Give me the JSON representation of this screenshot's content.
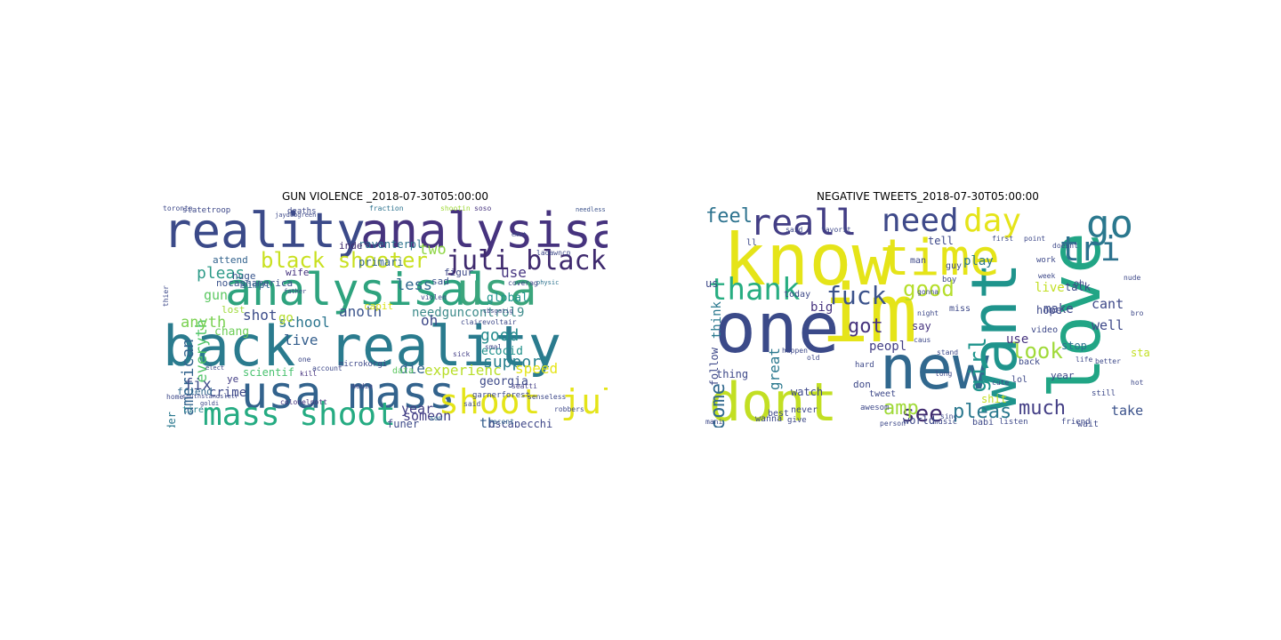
{
  "panels": [
    {
      "title": "GUN VIOLENCE _2018-07-30T05:00:00",
      "words": [
        {
          "t": "reality",
          "c": "#3b4a89"
        },
        {
          "t": "analysisal",
          "c": "#46337e"
        },
        {
          "t": "analysisal",
          "c": "#2ea37e"
        },
        {
          "t": "usa",
          "c": "#3ba57c"
        },
        {
          "t": "back reality",
          "c": "#2a7b8e"
        },
        {
          "t": "usa mass",
          "c": "#33638d"
        },
        {
          "t": "mass shoot",
          "c": "#25ab82"
        },
        {
          "t": "shoot juli",
          "c": "#e4e419"
        },
        {
          "t": "black shooter",
          "c": "#c9e020"
        },
        {
          "t": "juli black",
          "c": "#3f2a6e"
        },
        {
          "t": "pleas",
          "c": "#2f9b89"
        },
        {
          "t": "american",
          "c": "#32648e"
        },
        {
          "t": "everyth",
          "c": "#52c569"
        },
        {
          "t": "anyth",
          "c": "#7ad151"
        },
        {
          "t": "shot",
          "c": "#3d4d8a"
        },
        {
          "t": "school",
          "c": "#2b758e"
        },
        {
          "t": "anoth",
          "c": "#3a538b"
        },
        {
          "t": "needguncontrol9",
          "c": "#3f8c8c"
        },
        {
          "t": "good",
          "c": "#238a8d"
        },
        {
          "t": "support",
          "c": "#27808e"
        },
        {
          "t": "use",
          "c": "#463480"
        },
        {
          "t": "less",
          "c": "#31688e"
        },
        {
          "t": "oh",
          "c": "#3e4989"
        },
        {
          "t": "two",
          "c": "#8ed645"
        },
        {
          "t": "gun",
          "c": "#5dc863"
        },
        {
          "t": "live",
          "c": "#355f8d"
        },
        {
          "t": "go",
          "c": "#b5de2b"
        },
        {
          "t": "chang",
          "c": "#6ece58"
        },
        {
          "t": "fix",
          "c": "#3d4d8a"
        },
        {
          "t": "crime",
          "c": "#3e4989"
        },
        {
          "t": "die",
          "c": "#33638d"
        },
        {
          "t": "experienc",
          "c": "#b8de29"
        },
        {
          "t": "year",
          "c": "#423f85"
        },
        {
          "t": "someon",
          "c": "#433e85"
        },
        {
          "t": "th",
          "c": "#355f8d"
        },
        {
          "t": "ecocid",
          "c": "#21918c"
        },
        {
          "t": "georgia",
          "c": "#3e4a89"
        },
        {
          "t": "speed",
          "c": "#e5e419"
        },
        {
          "t": "raventerpl",
          "c": "#2c728e"
        },
        {
          "t": "inde",
          "c": "#3f2a6e"
        },
        {
          "t": "primari",
          "c": "#33638d"
        },
        {
          "t": "global",
          "c": "#1f948c"
        },
        {
          "t": "sad",
          "c": "#3b528b"
        },
        {
          "t": "figur",
          "c": "#3e4989"
        },
        {
          "t": "funer",
          "c": "#3e4a89"
        },
        {
          "t": "bscapecchi",
          "c": "#3f4788"
        },
        {
          "t": "nocapnamerica",
          "c": "#3b528b"
        },
        {
          "t": "huge",
          "c": "#39558c"
        },
        {
          "t": "simpl",
          "c": "#31688e"
        },
        {
          "t": "attend",
          "c": "#33638d"
        },
        {
          "t": "wife",
          "c": "#46337e"
        },
        {
          "t": "lost",
          "c": "#9fda3a"
        },
        {
          "t": "capit",
          "c": "#d8e219"
        },
        {
          "t": "scientif",
          "c": "#48c16e"
        },
        {
          "t": "friend",
          "c": "#31688e"
        },
        {
          "t": "ye",
          "c": "#433e85"
        },
        {
          "t": "wonder",
          "c": "#2a788e"
        },
        {
          "t": "tire",
          "c": "#26828e"
        },
        {
          "t": "data",
          "c": "#5ec962"
        },
        {
          "t": "microkorgi",
          "c": "#3e4989"
        },
        {
          "t": "statetroop",
          "c": "#3e4989"
        },
        {
          "t": "deaths",
          "c": "#3e4989"
        },
        {
          "t": "fraction",
          "c": "#2c728e"
        },
        {
          "t": "shootin",
          "c": "#a0da39"
        },
        {
          "t": "soso",
          "c": "#46337e"
        },
        {
          "t": "needless",
          "c": "#3b528b"
        },
        {
          "t": "garnerforest",
          "c": "#3e4989"
        },
        {
          "t": "son",
          "c": "#2c728e"
        },
        {
          "t": "said",
          "c": "#3e4989"
        },
        {
          "t": "recent",
          "c": "#33638d"
        },
        {
          "t": "clairevoltair",
          "c": "#3e4989"
        },
        {
          "t": "ladawncp",
          "c": "#3e4989"
        },
        {
          "t": "physic",
          "c": "#2c728e"
        },
        {
          "t": "coverag",
          "c": "#3e4989"
        },
        {
          "t": "violen",
          "c": "#3e4989"
        },
        {
          "t": "sick",
          "c": "#433e85"
        },
        {
          "t": "seatti",
          "c": "#433e85"
        },
        {
          "t": "senseless",
          "c": "#3e4989"
        },
        {
          "t": "robbers",
          "c": "#3e4989"
        },
        {
          "t": "thier",
          "c": "#3e4989"
        },
        {
          "t": "colonelpott",
          "c": "#46337e"
        },
        {
          "t": "media",
          "c": "#3e4989"
        },
        {
          "t": "account",
          "c": "#3e4989"
        },
        {
          "t": "kill",
          "c": "#46337e"
        },
        {
          "t": "one",
          "c": "#3e4989"
        },
        {
          "t": "emot",
          "c": "#3e4989"
        },
        {
          "t": "jaydubgreen",
          "c": "#3e4989"
        },
        {
          "t": "father",
          "c": "#3e4989"
        },
        {
          "t": "elect",
          "c": "#3e4989"
        },
        {
          "t": "home",
          "c": "#3e4989"
        },
        {
          "t": "cbsgatig",
          "c": "#3e4989"
        },
        {
          "t": "smal",
          "c": "#3e4989"
        },
        {
          "t": "southstandsletr",
          "c": "#3e4989"
        },
        {
          "t": "goldi",
          "c": "#3e4989"
        },
        {
          "t": "toronto",
          "c": "#3e4989"
        }
      ]
    },
    {
      "title": "NEGATIVE TWEETS_2018-07-30T05:00:00",
      "words": [
        {
          "t": "know",
          "c": "#e5e419"
        },
        {
          "t": "one",
          "c": "#3b4a89"
        },
        {
          "t": "im",
          "c": "#e5e419"
        },
        {
          "t": "love",
          "c": "#21a585"
        },
        {
          "t": "new",
          "c": "#31688e"
        },
        {
          "t": "dont",
          "c": "#c2df23"
        },
        {
          "t": "want",
          "c": "#1f948c"
        },
        {
          "t": "time",
          "c": "#e5e419"
        },
        {
          "t": "reall",
          "c": "#433e85"
        },
        {
          "t": "need",
          "c": "#3e4989"
        },
        {
          "t": "day",
          "c": "#e5e419"
        },
        {
          "t": "go",
          "c": "#2a788e"
        },
        {
          "t": "tri",
          "c": "#2c728e"
        },
        {
          "t": "thank",
          "c": "#27ad81"
        },
        {
          "t": "fuck",
          "c": "#3b528b"
        },
        {
          "t": "good",
          "c": "#b5de2b"
        },
        {
          "t": "got",
          "c": "#46337e"
        },
        {
          "t": "girl",
          "c": "#1f948c"
        },
        {
          "t": "look",
          "c": "#a0da39"
        },
        {
          "t": "see",
          "c": "#3f2a6e"
        },
        {
          "t": "amp",
          "c": "#a0da39"
        },
        {
          "t": "come",
          "c": "#31688e"
        },
        {
          "t": "feel",
          "c": "#2c728e"
        },
        {
          "t": "pleas",
          "c": "#2a788e"
        },
        {
          "t": "much",
          "c": "#433e85"
        },
        {
          "t": "take",
          "c": "#3b528b"
        },
        {
          "t": "cant",
          "c": "#3e4989"
        },
        {
          "t": "well",
          "c": "#3e4989"
        },
        {
          "t": "make",
          "c": "#3e4989"
        },
        {
          "t": "peopl",
          "c": "#433e85"
        },
        {
          "t": "live",
          "c": "#c2df23"
        },
        {
          "t": "play",
          "c": "#2a788e"
        },
        {
          "t": "talk",
          "c": "#3e4989"
        },
        {
          "t": "tell",
          "c": "#3e4989"
        },
        {
          "t": "hope",
          "c": "#3e4989"
        },
        {
          "t": "big",
          "c": "#46337e"
        },
        {
          "t": "think",
          "c": "#2a788e"
        },
        {
          "t": "follow",
          "c": "#3e4989"
        },
        {
          "t": "great",
          "c": "#2a788e"
        },
        {
          "t": "watch",
          "c": "#3e4989"
        },
        {
          "t": "shit",
          "c": "#c2df23"
        },
        {
          "t": "use",
          "c": "#46337e"
        },
        {
          "t": "world",
          "c": "#3e4989"
        },
        {
          "t": "stop",
          "c": "#2c728e"
        },
        {
          "t": "start",
          "c": "#c2df23"
        },
        {
          "t": "back",
          "c": "#3e4989"
        },
        {
          "t": "year",
          "c": "#3e4989"
        },
        {
          "t": "say",
          "c": "#46337e"
        },
        {
          "t": "ll",
          "c": "#3e4989"
        },
        {
          "t": "us",
          "c": "#3e4989"
        },
        {
          "t": "oh",
          "c": "#3e4989"
        },
        {
          "t": "video",
          "c": "#3e4989"
        },
        {
          "t": "night",
          "c": "#3e4989"
        },
        {
          "t": "miss",
          "c": "#3e4989"
        },
        {
          "t": "wanna",
          "c": "#3e4989"
        },
        {
          "t": "don",
          "c": "#3e4989"
        },
        {
          "t": "tweet",
          "c": "#3e4989"
        },
        {
          "t": "never",
          "c": "#3e4989"
        },
        {
          "t": "best",
          "c": "#3e4989"
        },
        {
          "t": "thing",
          "c": "#3e4989"
        },
        {
          "t": "lol",
          "c": "#3e4989"
        },
        {
          "t": "man",
          "c": "#3e4989"
        },
        {
          "t": "guy",
          "c": "#3e4989"
        },
        {
          "t": "boy",
          "c": "#3e4989"
        },
        {
          "t": "today",
          "c": "#3e4989"
        },
        {
          "t": "hard",
          "c": "#3e4989"
        },
        {
          "t": "music",
          "c": "#3e4989"
        },
        {
          "t": "babi",
          "c": "#3e4989"
        },
        {
          "t": "listen",
          "c": "#3e4989"
        },
        {
          "t": "wait",
          "c": "#3e4989"
        },
        {
          "t": "friend",
          "c": "#3e4989"
        },
        {
          "t": "still",
          "c": "#3e4989"
        },
        {
          "t": "work",
          "c": "#3e4989"
        },
        {
          "t": "week",
          "c": "#3e4989"
        },
        {
          "t": "hot",
          "c": "#3e4989"
        },
        {
          "t": "awesom",
          "c": "#3e4989"
        },
        {
          "t": "give",
          "c": "#3e4989"
        },
        {
          "t": "sinc",
          "c": "#3e4989"
        },
        {
          "t": "caus",
          "c": "#3e4989"
        },
        {
          "t": "said",
          "c": "#3e4989"
        },
        {
          "t": "favorit",
          "c": "#3e4989"
        },
        {
          "t": "gonna",
          "c": "#3e4989"
        },
        {
          "t": "first",
          "c": "#3e4989"
        },
        {
          "t": "point",
          "c": "#3e4989"
        },
        {
          "t": "doesnt",
          "c": "#3e4989"
        },
        {
          "t": "nude",
          "c": "#3e4989"
        },
        {
          "t": "better",
          "c": "#3e4989"
        },
        {
          "t": "life",
          "c": "#3e4989"
        },
        {
          "t": "mani",
          "c": "#3e4989"
        },
        {
          "t": "person",
          "c": "#3e4989"
        },
        {
          "t": "happen",
          "c": "#3e4989"
        },
        {
          "t": "old",
          "c": "#3e4989"
        },
        {
          "t": "cute",
          "c": "#3e4989"
        },
        {
          "t": "stand",
          "c": "#3e4989"
        },
        {
          "t": "long",
          "c": "#3e4989"
        },
        {
          "t": "bro",
          "c": "#3e4989"
        }
      ]
    }
  ]
}
